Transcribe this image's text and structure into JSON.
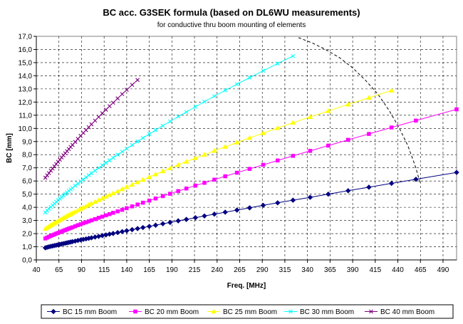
{
  "chart_data": {
    "type": "line",
    "title": "BC acc. G3SEK formula (based on DL6WU measurements)",
    "subtitle": "for conductive thru boom mounting of elements",
    "xlabel": "Freq. [MHz]",
    "ylabel": "BC [mm]",
    "xlim": [
      40,
      505
    ],
    "ylim": [
      0,
      17
    ],
    "x_ticks": [
      "40",
      "65",
      "90",
      "115",
      "140",
      "165",
      "190",
      "215",
      "240",
      "265",
      "290",
      "315",
      "340",
      "365",
      "390",
      "415",
      "440",
      "465",
      "490"
    ],
    "y_ticks": [
      "0,0",
      "1,0",
      "2,0",
      "3,0",
      "4,0",
      "5,0",
      "6,0",
      "7,0",
      "8,0",
      "9,0",
      "10,0",
      "11,0",
      "12,0",
      "13,0",
      "14,0",
      "15,0",
      "16,0",
      "17,0"
    ],
    "grid": true,
    "legend_position": "bottom",
    "series": [
      {
        "name": "BC 15 mm Boom",
        "color": "#000080",
        "marker": "diamond",
        "x": [
          50,
          52,
          54,
          56,
          58,
          60,
          62,
          64,
          66,
          68,
          70,
          72,
          74,
          76,
          78,
          80,
          83,
          86,
          89,
          92,
          95,
          98,
          101,
          105,
          109,
          113,
          117,
          121,
          125,
          130,
          135,
          140,
          146,
          152,
          158,
          165,
          172,
          180,
          188,
          197,
          206,
          216,
          226,
          237,
          249,
          262,
          276,
          291,
          307,
          324,
          343,
          363,
          385,
          408,
          433,
          460,
          505
        ],
        "y": [
          0.92,
          0.96,
          1.0,
          1.03,
          1.06,
          1.09,
          1.12,
          1.15,
          1.18,
          1.21,
          1.24,
          1.27,
          1.3,
          1.33,
          1.36,
          1.39,
          1.43,
          1.48,
          1.52,
          1.56,
          1.6,
          1.64,
          1.68,
          1.74,
          1.79,
          1.85,
          1.9,
          1.96,
          2.01,
          2.08,
          2.15,
          2.22,
          2.3,
          2.38,
          2.46,
          2.55,
          2.64,
          2.75,
          2.85,
          2.97,
          3.08,
          3.21,
          3.34,
          3.48,
          3.63,
          3.79,
          3.96,
          4.15,
          4.34,
          4.54,
          4.76,
          5.0,
          5.26,
          5.53,
          5.82,
          6.13,
          6.65
        ]
      },
      {
        "name": "BC 20 mm Boom",
        "color": "#FF00FF",
        "marker": "square",
        "x": [
          50,
          52,
          54,
          56,
          58,
          60,
          62,
          64,
          66,
          68,
          70,
          72,
          74,
          76,
          78,
          80,
          83,
          86,
          89,
          92,
          95,
          98,
          101,
          105,
          109,
          113,
          117,
          121,
          125,
          130,
          135,
          140,
          146,
          152,
          158,
          165,
          172,
          180,
          188,
          197,
          206,
          216,
          226,
          237,
          249,
          262,
          276,
          291,
          307,
          324,
          343,
          363,
          385,
          408,
          433,
          460,
          505
        ],
        "y": [
          1.63,
          1.7,
          1.76,
          1.82,
          1.88,
          1.94,
          2.0,
          2.05,
          2.11,
          2.16,
          2.22,
          2.27,
          2.33,
          2.38,
          2.43,
          2.48,
          2.56,
          2.64,
          2.71,
          2.79,
          2.86,
          2.93,
          3.01,
          3.1,
          3.2,
          3.29,
          3.39,
          3.48,
          3.58,
          3.69,
          3.81,
          3.93,
          4.07,
          4.21,
          4.35,
          4.51,
          4.67,
          4.85,
          5.03,
          5.23,
          5.43,
          5.65,
          5.86,
          6.1,
          6.36,
          6.63,
          6.92,
          7.23,
          7.56,
          7.91,
          8.29,
          8.69,
          9.13,
          9.58,
          10.07,
          10.59,
          11.45
        ]
      },
      {
        "name": "BC 25 mm Boom",
        "color": "#FFFF00",
        "marker": "triangle",
        "x": [
          50,
          52,
          54,
          56,
          58,
          60,
          62,
          64,
          66,
          68,
          70,
          72,
          74,
          76,
          78,
          80,
          83,
          86,
          89,
          92,
          95,
          98,
          101,
          105,
          109,
          113,
          117,
          121,
          125,
          130,
          135,
          140,
          146,
          152,
          158,
          165,
          172,
          180,
          188,
          197,
          206,
          216,
          226,
          237,
          249,
          262,
          276,
          291,
          307,
          324,
          343,
          363,
          385,
          408,
          433
        ],
        "y": [
          2.36,
          2.45,
          2.54,
          2.62,
          2.71,
          2.79,
          2.87,
          2.95,
          3.03,
          3.11,
          3.19,
          3.26,
          3.34,
          3.41,
          3.48,
          3.56,
          3.66,
          3.77,
          3.88,
          3.98,
          4.08,
          4.19,
          4.29,
          4.42,
          4.55,
          4.68,
          4.81,
          4.94,
          5.06,
          5.22,
          5.38,
          5.54,
          5.72,
          5.91,
          6.09,
          6.3,
          6.51,
          6.74,
          6.97,
          7.22,
          7.47,
          7.74,
          8.0,
          8.3,
          8.6,
          8.93,
          9.28,
          9.64,
          10.03,
          10.43,
          10.87,
          11.32,
          11.82,
          12.33,
          12.88
        ]
      },
      {
        "name": "BC 30 mm Boom",
        "color": "#00FFFF",
        "marker": "x",
        "x": [
          50,
          52,
          54,
          56,
          58,
          60,
          62,
          64,
          66,
          68,
          70,
          72,
          74,
          76,
          78,
          80,
          83,
          86,
          89,
          92,
          95,
          98,
          101,
          105,
          109,
          113,
          117,
          121,
          125,
          130,
          135,
          140,
          146,
          152,
          158,
          165,
          172,
          180,
          188,
          197,
          206,
          216,
          226,
          237,
          249,
          262,
          276,
          291,
          307,
          324
        ],
        "y": [
          3.61,
          3.75,
          3.89,
          4.02,
          4.15,
          4.28,
          4.41,
          4.54,
          4.66,
          4.78,
          4.9,
          5.02,
          5.13,
          5.25,
          5.36,
          5.47,
          5.64,
          5.8,
          5.96,
          6.12,
          6.28,
          6.44,
          6.59,
          6.79,
          6.99,
          7.19,
          7.38,
          7.57,
          7.76,
          8.0,
          8.23,
          8.46,
          8.73,
          9.0,
          9.27,
          9.57,
          9.87,
          10.2,
          10.53,
          10.9,
          11.25,
          11.64,
          12.03,
          12.45,
          12.89,
          13.36,
          13.86,
          14.38,
          14.93,
          15.5
        ]
      },
      {
        "name": "BC 40 mm Boom",
        "color": "#800080",
        "marker": "x",
        "x": [
          50,
          52,
          54,
          56,
          58,
          60,
          62,
          64,
          66,
          68,
          70,
          72,
          74,
          76,
          78,
          80,
          83,
          86,
          89,
          92,
          95,
          98,
          101,
          105,
          109,
          113,
          117,
          121,
          125,
          130,
          135,
          140,
          146,
          152
        ],
        "y": [
          6.25,
          6.43,
          6.6,
          6.78,
          6.95,
          7.12,
          7.29,
          7.46,
          7.62,
          7.79,
          7.95,
          8.11,
          8.27,
          8.43,
          8.59,
          8.74,
          8.97,
          9.2,
          9.43,
          9.65,
          9.87,
          10.09,
          10.31,
          10.59,
          10.87,
          11.15,
          11.42,
          11.69,
          11.95,
          12.28,
          12.61,
          12.93,
          13.31,
          13.68
        ]
      }
    ],
    "boundary_curve": {
      "color": "#000000",
      "style": "dashed",
      "x": [
        330,
        345,
        360,
        375,
        390,
        405,
        418,
        430,
        441,
        451,
        459,
        465
      ],
      "y": [
        16.9,
        16.5,
        16.0,
        15.4,
        14.6,
        13.6,
        12.6,
        11.4,
        10.1,
        8.7,
        7.2,
        5.8
      ]
    }
  }
}
